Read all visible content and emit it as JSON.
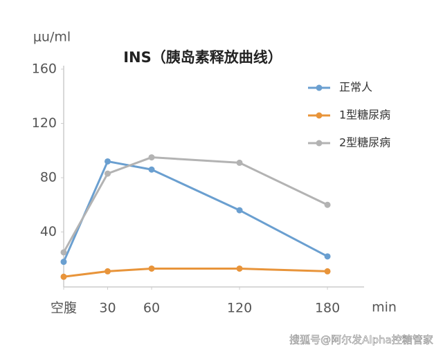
{
  "chart_data": {
    "type": "line",
    "title": "INS（胰岛素释放曲线）",
    "y_label": "μu/ml",
    "x_label": "min",
    "x": [
      0,
      30,
      60,
      120,
      180
    ],
    "series": [
      {
        "name": "正常人",
        "color": "#6a9fd0",
        "values": [
          18,
          92,
          86,
          56,
          22
        ]
      },
      {
        "name": "1型糖尿病",
        "color": "#e8943a",
        "values": [
          7,
          11,
          13,
          13,
          11
        ]
      },
      {
        "name": "2型糖尿病",
        "color": "#b3b3b3",
        "values": [
          25,
          83,
          95,
          91,
          60
        ]
      }
    ],
    "xlim": [
      0,
      205
    ],
    "xticks": [
      {
        "value": 0,
        "label": "空腹"
      },
      30,
      60,
      120,
      180
    ],
    "ylim": [
      0,
      160
    ],
    "yticks": [
      40,
      80,
      120,
      160
    ],
    "legend": "top-right",
    "watermark": "搜狐号@阿尔发Alpha控糖管家"
  }
}
